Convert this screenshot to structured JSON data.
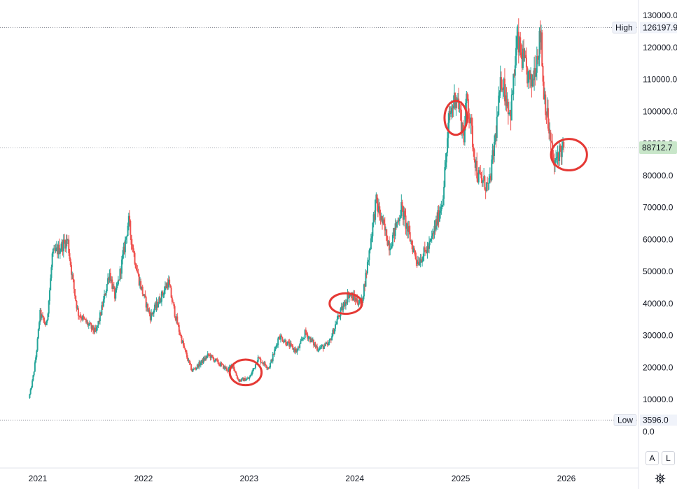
{
  "chart_data": {
    "type": "candlestick",
    "title": "",
    "xlabel": "",
    "ylabel": "",
    "ylim": [
      0,
      130000
    ],
    "y_ticks": [
      "130000.0",
      "120000.0",
      "110000.0",
      "100000.0",
      "90000.0",
      "80000.0",
      "70000.0",
      "60000.0",
      "50000.0",
      "40000.0",
      "30000.0",
      "20000.0",
      "10000.0",
      "0.0"
    ],
    "x_ticks": [
      "2021",
      "2022",
      "2023",
      "2024",
      "2025",
      "2026"
    ],
    "high_label": "High",
    "high_value": "126197.9",
    "low_label": "Low",
    "low_value": "3596.0",
    "last_price": "88712.7",
    "colors": {
      "up": "#26a69a",
      "down": "#ef5350",
      "highlight": "#e53935",
      "last_tag": "#c8e6c9"
    },
    "anchors": [
      [
        "2020-12-01",
        10500
      ],
      [
        "2021-01-08",
        37000
      ],
      [
        "2021-01-30",
        33000
      ],
      [
        "2021-02-20",
        55000
      ],
      [
        "2021-04-14",
        60000
      ],
      [
        "2021-05-20",
        37000
      ],
      [
        "2021-07-20",
        31000
      ],
      [
        "2021-09-05",
        50000
      ],
      [
        "2021-09-25",
        42000
      ],
      [
        "2021-11-10",
        66000
      ],
      [
        "2021-12-15",
        48000
      ],
      [
        "2022-01-25",
        36000
      ],
      [
        "2022-03-28",
        47000
      ],
      [
        "2022-05-12",
        29000
      ],
      [
        "2022-06-18",
        19000
      ],
      [
        "2022-08-14",
        24000
      ],
      [
        "2022-10-20",
        19200
      ],
      [
        "2022-11-05",
        21000
      ],
      [
        "2022-11-25",
        16000
      ],
      [
        "2022-12-31",
        16500
      ],
      [
        "2023-01-31",
        23000
      ],
      [
        "2023-03-10",
        20000
      ],
      [
        "2023-04-14",
        30000
      ],
      [
        "2023-06-15",
        25000
      ],
      [
        "2023-07-14",
        31000
      ],
      [
        "2023-08-25",
        26000
      ],
      [
        "2023-10-01",
        27000
      ],
      [
        "2023-11-01",
        35000
      ],
      [
        "2023-12-10",
        43000
      ],
      [
        "2024-01-23",
        40000
      ],
      [
        "2024-02-28",
        62000
      ],
      [
        "2024-03-14",
        72000
      ],
      [
        "2024-05-01",
        58000
      ],
      [
        "2024-06-10",
        70000
      ],
      [
        "2024-08-05",
        53000
      ],
      [
        "2024-09-15",
        58000
      ],
      [
        "2024-10-29",
        72000
      ],
      [
        "2024-11-22",
        98000
      ],
      [
        "2024-12-17",
        106000
      ],
      [
        "2025-01-13",
        92000
      ],
      [
        "2025-01-22",
        106000
      ],
      [
        "2025-02-28",
        80000
      ],
      [
        "2025-04-08",
        76000
      ],
      [
        "2025-05-22",
        111000
      ],
      [
        "2025-06-22",
        99000
      ],
      [
        "2025-07-14",
        122000
      ],
      [
        "2025-09-01",
        108000
      ],
      [
        "2025-10-06",
        125000
      ],
      [
        "2025-10-11",
        110000
      ],
      [
        "2025-11-21",
        82000
      ],
      [
        "2025-12-01",
        87000
      ],
      [
        "2025-12-24",
        88712.7
      ]
    ],
    "highlights": [
      {
        "center": [
          "2022-12-20",
          18500
        ],
        "rx_days": 55,
        "ry": 4000
      },
      {
        "center": [
          "2023-12-01",
          40000
        ],
        "rx_days": 56,
        "ry": 3200
      },
      {
        "center": [
          "2024-12-15",
          98000
        ],
        "rx_days": 39,
        "ry": 5300
      },
      {
        "center": [
          "2026-01-10",
          86500
        ],
        "rx_days": 62,
        "ry": 4900
      }
    ]
  },
  "controls": {
    "auto_label": "A",
    "log_label": "L"
  },
  "icons": {
    "settings": "gear-icon"
  }
}
